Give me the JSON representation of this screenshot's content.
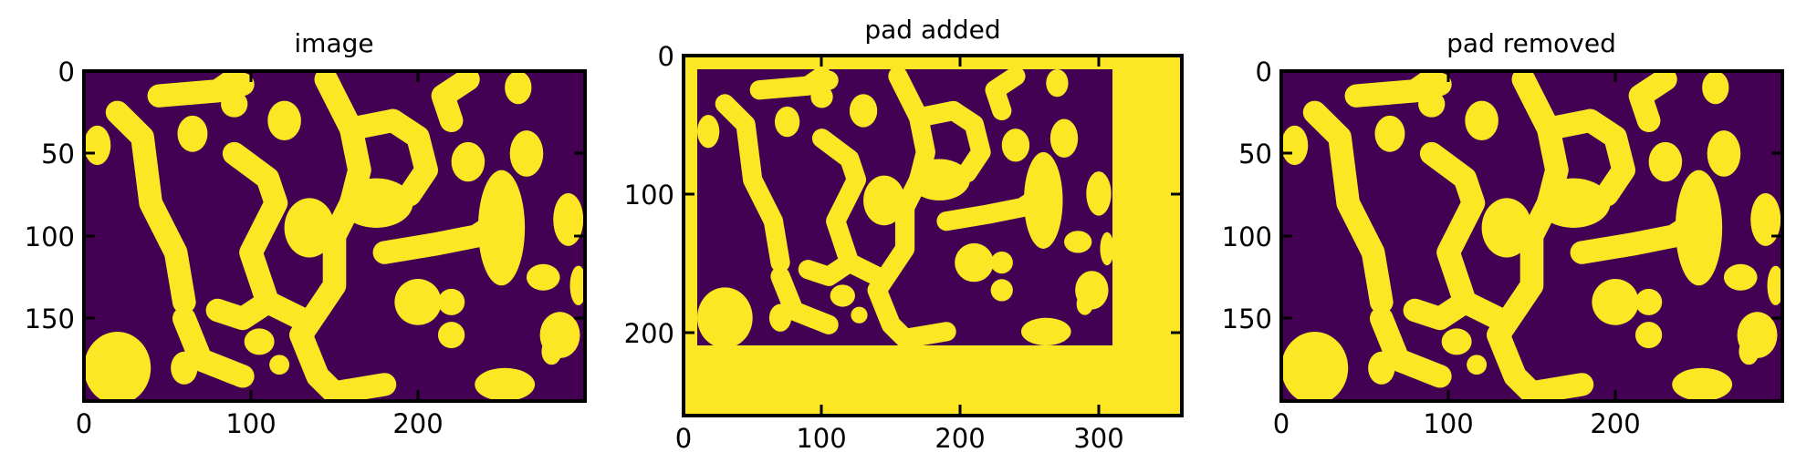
{
  "colors": {
    "background": "#440154",
    "foreground": "#fde725",
    "axes": "#000000"
  },
  "chart_data": [
    {
      "type": "heatmap",
      "title": "image",
      "xlabel": "",
      "ylabel": "",
      "xlim": [
        0,
        300
      ],
      "ylim": [
        200,
        0
      ],
      "xticks": [
        0,
        100,
        200
      ],
      "xtick_labels": [
        "0",
        "100",
        "200"
      ],
      "yticks": [
        0,
        50,
        100,
        150
      ],
      "ytick_labels": [
        "0",
        "50",
        "100",
        "150"
      ],
      "colormap": "viridis",
      "values": "binary mask of blobs (0 = purple, 1 = yellow)",
      "image_extent": [
        0,
        300,
        0,
        200
      ]
    },
    {
      "type": "heatmap",
      "title": "pad added",
      "xlabel": "",
      "ylabel": "",
      "xlim": [
        0,
        360
      ],
      "ylim": [
        260,
        0
      ],
      "xticks": [
        0,
        100,
        200,
        300
      ],
      "xtick_labels": [
        "0",
        "100",
        "200",
        "300"
      ],
      "yticks": [
        0,
        100,
        200
      ],
      "ytick_labels": [
        "0",
        "100",
        "200"
      ],
      "colormap": "viridis",
      "values": "binary mask padded with value 1",
      "image_extent": [
        10,
        310,
        10,
        210
      ],
      "pad_value": 1
    },
    {
      "type": "heatmap",
      "title": "pad removed",
      "xlabel": "",
      "ylabel": "",
      "xlim": [
        0,
        300
      ],
      "ylim": [
        200,
        0
      ],
      "xticks": [
        0,
        100,
        200
      ],
      "xtick_labels": [
        "0",
        "100",
        "200"
      ],
      "yticks": [
        0,
        50,
        100,
        150
      ],
      "ytick_labels": [
        "0",
        "50",
        "100",
        "150"
      ],
      "colormap": "viridis",
      "values": "binary mask of blobs (0 = purple, 1 = yellow)",
      "image_extent": [
        0,
        300,
        0,
        200
      ]
    }
  ]
}
